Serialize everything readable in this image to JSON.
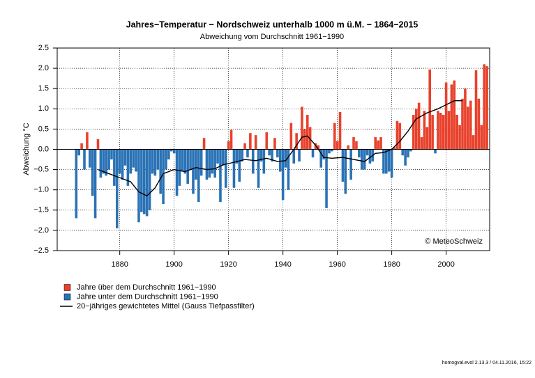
{
  "chart_data": {
    "type": "bar",
    "title": "Jahres−Temperatur − Nordschweiz unterhalb 1000 m ü.M. − 1864−2015",
    "subtitle": "Abweichung vom Durchschnitt 1961−1990",
    "ylabel": "Abweichung °C",
    "annotation": "© MeteoSchweiz",
    "footer": "homogval.evol 2.13.3 / 04.11.2016, 15:22",
    "x": [
      1864,
      1865,
      1866,
      1867,
      1868,
      1869,
      1870,
      1871,
      1872,
      1873,
      1874,
      1875,
      1876,
      1877,
      1878,
      1879,
      1880,
      1881,
      1882,
      1883,
      1884,
      1885,
      1886,
      1887,
      1888,
      1889,
      1890,
      1891,
      1892,
      1893,
      1894,
      1895,
      1896,
      1897,
      1898,
      1899,
      1900,
      1901,
      1902,
      1903,
      1904,
      1905,
      1906,
      1907,
      1908,
      1909,
      1910,
      1911,
      1912,
      1913,
      1914,
      1915,
      1916,
      1917,
      1918,
      1919,
      1920,
      1921,
      1922,
      1923,
      1924,
      1925,
      1926,
      1927,
      1928,
      1929,
      1930,
      1931,
      1932,
      1933,
      1934,
      1935,
      1936,
      1937,
      1938,
      1939,
      1940,
      1941,
      1942,
      1943,
      1944,
      1945,
      1946,
      1947,
      1948,
      1949,
      1950,
      1951,
      1952,
      1953,
      1954,
      1955,
      1956,
      1957,
      1958,
      1959,
      1960,
      1961,
      1962,
      1963,
      1964,
      1965,
      1966,
      1967,
      1968,
      1969,
      1970,
      1971,
      1972,
      1973,
      1974,
      1975,
      1976,
      1977,
      1978,
      1979,
      1980,
      1981,
      1982,
      1983,
      1984,
      1985,
      1986,
      1987,
      1988,
      1989,
      1990,
      1991,
      1992,
      1993,
      1994,
      1995,
      1996,
      1997,
      1998,
      1999,
      2000,
      2001,
      2002,
      2003,
      2004,
      2005,
      2006,
      2007,
      2008,
      2009,
      2010,
      2011,
      2012,
      2013,
      2014,
      2015
    ],
    "values": [
      -1.7,
      -0.15,
      0.15,
      -0.5,
      0.42,
      -0.45,
      -1.15,
      -1.7,
      0.25,
      -0.7,
      -0.6,
      -0.65,
      -0.5,
      -0.25,
      -0.9,
      -1.95,
      -0.6,
      -0.75,
      -0.4,
      -0.9,
      -0.6,
      -0.45,
      -0.55,
      -1.8,
      -1.55,
      -1.6,
      -1.65,
      -1.5,
      -0.6,
      -0.65,
      -0.5,
      -1.1,
      -1.35,
      -0.5,
      -0.25,
      -0.05,
      -0.1,
      -1.15,
      -0.9,
      -0.55,
      -0.6,
      -0.85,
      -0.5,
      -1.1,
      -0.75,
      -1.3,
      -0.65,
      0.28,
      -0.75,
      -0.7,
      -0.6,
      -0.7,
      -0.35,
      -1.3,
      -0.4,
      -0.95,
      0.2,
      0.48,
      -0.95,
      -0.35,
      -0.8,
      -0.3,
      0.15,
      -0.2,
      0.4,
      -0.6,
      0.35,
      -0.95,
      -0.3,
      -0.6,
      0.42,
      -0.15,
      -0.3,
      0.28,
      -0.2,
      -0.55,
      -1.25,
      -0.45,
      -1.0,
      0.65,
      -0.35,
      0.4,
      -0.3,
      1.05,
      0.5,
      0.85,
      0.55,
      -0.2,
      0.15,
      0.1,
      -0.45,
      -0.25,
      -1.45,
      -0.1,
      -0.05,
      0.65,
      0.2,
      0.92,
      -0.8,
      -1.1,
      0.1,
      -0.75,
      0.3,
      0.2,
      -0.2,
      -0.5,
      -0.5,
      -0.15,
      -0.35,
      -0.3,
      0.3,
      0.22,
      0.3,
      -0.6,
      -0.6,
      -0.55,
      -0.7,
      0.05,
      0.7,
      0.65,
      -0.15,
      -0.4,
      -0.2,
      -0.05,
      0.85,
      1.0,
      1.15,
      0.3,
      0.95,
      0.55,
      1.97,
      0.85,
      -0.1,
      0.95,
      0.9,
      0.85,
      1.65,
      0.95,
      1.6,
      1.7,
      0.85,
      0.6,
      1.25,
      1.5,
      1.05,
      1.2,
      0.35,
      1.95,
      1.25,
      0.6,
      2.1,
      2.05
    ],
    "legend": [
      {
        "name": "Jahre über dem Durchschnitt 1961−1990",
        "color": "#e8412c"
      },
      {
        "name": "Jahre unter dem Durchschnitt 1961−1990",
        "color": "#2a72b5"
      }
    ],
    "line": {
      "name": "20−jähriges gewichtetes Mittel (Gauss Tiefpassfilter)",
      "color": "#000000",
      "x": [
        1872,
        1876,
        1880,
        1884,
        1887,
        1890,
        1893,
        1896,
        1900,
        1904,
        1908,
        1912,
        1915,
        1918,
        1922,
        1926,
        1930,
        1934,
        1938,
        1941,
        1944,
        1947,
        1949,
        1952,
        1955,
        1958,
        1962,
        1966,
        1970,
        1974,
        1977,
        1980,
        1983,
        1986,
        1989,
        1993,
        1997,
        2000,
        2003,
        2006
      ],
      "values": [
        -0.5,
        -0.6,
        -0.7,
        -0.8,
        -1.05,
        -1.15,
        -0.95,
        -0.6,
        -0.5,
        -0.55,
        -0.45,
        -0.5,
        -0.48,
        -0.38,
        -0.32,
        -0.25,
        -0.28,
        -0.22,
        -0.3,
        -0.28,
        0.0,
        0.3,
        0.33,
        0.1,
        -0.2,
        -0.22,
        -0.2,
        -0.25,
        -0.3,
        -0.1,
        -0.08,
        0.0,
        0.2,
        0.45,
        0.75,
        0.9,
        1.0,
        1.1,
        1.2,
        1.2
      ]
    },
    "xlim": [
      1857,
      2016
    ],
    "xticks": [
      1880,
      1900,
      1920,
      1940,
      1960,
      1980,
      2000
    ],
    "ylim": [
      -2.5,
      2.5
    ],
    "yticks": [
      {
        "value": 2.5,
        "label": "2.5"
      },
      {
        "value": 2.0,
        "label": "2.0"
      },
      {
        "value": 1.5,
        "label": "1.5"
      },
      {
        "value": 1.0,
        "label": "1.0"
      },
      {
        "value": 0.5,
        "label": "0.5"
      },
      {
        "value": 0.0,
        "label": "0.0"
      },
      {
        "value": -0.5,
        "label": "−0.5"
      },
      {
        "value": -1.0,
        "label": "−1.0"
      },
      {
        "value": -1.5,
        "label": "−1.5"
      },
      {
        "value": -2.0,
        "label": "−2.0"
      },
      {
        "value": -2.5,
        "label": "−2.5"
      }
    ],
    "grid": true
  }
}
